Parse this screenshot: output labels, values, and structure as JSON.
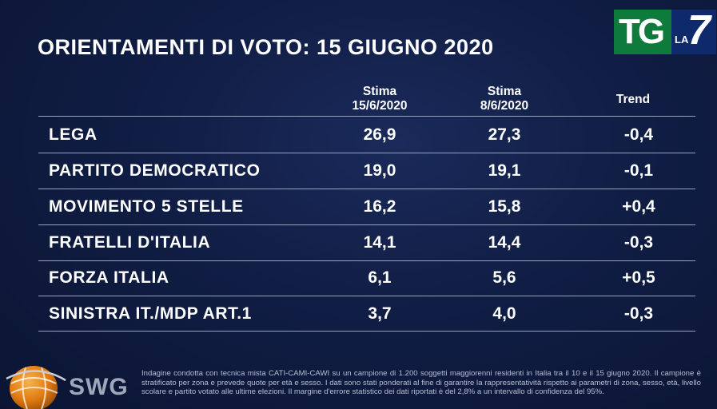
{
  "logo": {
    "tg": "TG",
    "la": "LA",
    "seven": "7"
  },
  "title": "ORIENTAMENTI DI VOTO: 15 GIUGNO 2020",
  "columns": {
    "col1_line1": "Stima",
    "col1_line2": "15/6/2020",
    "col2_line1": "Stima",
    "col2_line2": "8/6/2020",
    "trend": "Trend"
  },
  "rows": [
    {
      "party": "LEGA",
      "stima_15_6": "26,9",
      "stima_8_6": "27,3",
      "trend": "-0,4"
    },
    {
      "party": "PARTITO DEMOCRATICO",
      "stima_15_6": "19,0",
      "stima_8_6": "19,1",
      "trend": "-0,1"
    },
    {
      "party": "MOVIMENTO 5 STELLE",
      "stima_15_6": "16,2",
      "stima_8_6": "15,8",
      "trend": "+0,4"
    },
    {
      "party": "FRATELLI D'ITALIA",
      "stima_15_6": "14,1",
      "stima_8_6": "14,4",
      "trend": "-0,3"
    },
    {
      "party": "FORZA ITALIA",
      "stima_15_6": "6,1",
      "stima_8_6": "5,6",
      "trend": "+0,5"
    },
    {
      "party": "SINISTRA IT./MDP ART.1",
      "stima_15_6": "3,7",
      "stima_8_6": "4,0",
      "trend": "-0,3"
    }
  ],
  "swg": {
    "label": "SWG"
  },
  "footnote": "Indagine condotta con tecnica mista CATI-CAMI-CAWI su un campione di 1.200 soggetti maggiorenni residenti in Italia tra il 10 e il 15 giugno 2020. Il campione è stratificato per zona e prevede quote per età e sesso. I dati sono stati ponderati al fine di garantire la rappresentatività rispetto ai parametri di zona, sesso, età, livello scolare e partito votato alle ultime elezioni. Il margine d'errore statistico dei dati riportati è del 2,8% a un intervallo di confidenza del 95%.",
  "colors": {
    "background": "#101d44",
    "tg_green": "#0e7a3c",
    "la7_blue": "#0f2a6a",
    "swg_orange": "#e8891e",
    "text": "#ffffff",
    "rule": "#9aa3bd"
  }
}
